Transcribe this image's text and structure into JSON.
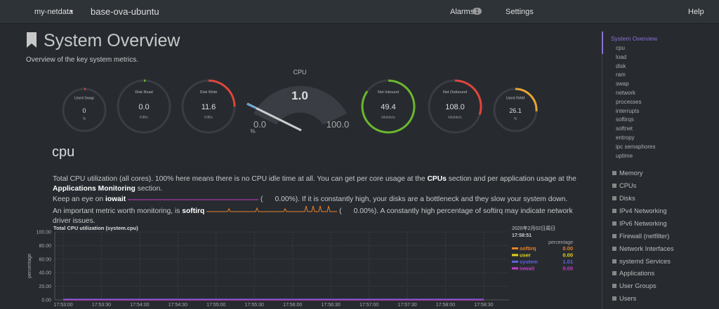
{
  "navbar": {
    "brand": "my-netdata",
    "host": "base-ova-ubuntu",
    "alarms": "Alarms",
    "alarms_count": "1",
    "settings": "Settings",
    "help": "Help"
  },
  "header": {
    "title": "System Overview",
    "subtitle": "Overview of the key system metrics."
  },
  "gauges": [
    {
      "label": "Used Swap",
      "value": "0",
      "units": "%"
    },
    {
      "label": "Disk Read",
      "value": "0.0",
      "units": "KiB/s"
    },
    {
      "label": "Disk Write",
      "value": "11.6",
      "units": "KiB/s"
    },
    {
      "label": "Net Inbound",
      "value": "49.4",
      "units": "kilobits/s"
    },
    {
      "label": "Net Outbound",
      "value": "108.0",
      "units": "kilobits/s"
    },
    {
      "label": "Used RAM",
      "value": "26.1",
      "units": "%"
    }
  ],
  "cpu_gauge": {
    "label": "CPU",
    "value": "1.0",
    "min": "0.0",
    "max": "100.0",
    "units": "%"
  },
  "section": {
    "title": "cpu",
    "text_1": "Total CPU utilization (all cores). 100% here means there is no CPU idle time at all. You can get per core usage at the ",
    "link_1": "CPUs",
    "text_2": " section and per application usage at the ",
    "link_2": "Applications Monitoring",
    "text_3": " section.",
    "iowait_pre": "Keep an eye on ",
    "iowait_key": "iowait",
    "iowait_open": "(",
    "iowait_value": "0.00%",
    "iowait_post": "). If it is constantly high, your disks are a bottleneck and they slow your system down.",
    "softirq_pre": "An important metric worth monitoring, is ",
    "softirq_key": "softirq",
    "softirq_open": "(",
    "softirq_value": "0.00%",
    "softirq_post": "). A constantly high percentage of softirq may indicate network driver issues."
  },
  "chart_data": {
    "type": "line",
    "title": "Total CPU utilization (system.cpu)",
    "y_label": "percentage",
    "grid": true,
    "ylim": [
      0,
      100
    ],
    "yticks": [
      {
        "value": 100,
        "label": "100.00"
      },
      {
        "value": 80,
        "label": "80.00"
      },
      {
        "value": 60,
        "label": "60.00"
      },
      {
        "value": 40,
        "label": "40.00"
      },
      {
        "value": 20,
        "label": "20.00"
      },
      {
        "value": 0,
        "label": "0.00"
      }
    ],
    "x": [
      "17:53:00",
      "17:53:30",
      "17:54:00",
      "17:54:30",
      "17:55:00",
      "17:55:30",
      "17:56:00",
      "17:56:30",
      "17:57:00",
      "17:57:30",
      "17:58:00",
      "17:58:30"
    ],
    "legend": {
      "date": "2020年2月02日周日",
      "time": "17:58:51",
      "units": "percentage"
    },
    "series": [
      {
        "name": "softirq",
        "color": "#e5822a",
        "latest": "0.00",
        "values": [
          0,
          0,
          0,
          0,
          0,
          0,
          0,
          0,
          0,
          0,
          0,
          0
        ]
      },
      {
        "name": "user",
        "color": "#e5d41d",
        "latest": "0.00",
        "values": [
          0.5,
          0.4,
          0.5,
          0.4,
          0.5,
          0.5,
          0.4,
          0.5,
          0.4,
          0.5,
          0.4,
          0.5
        ]
      },
      {
        "name": "system",
        "color": "#5f63e0",
        "latest": "1.01",
        "values": [
          1,
          1,
          1,
          1,
          1,
          1,
          1,
          1,
          1,
          1,
          1,
          1
        ]
      },
      {
        "name": "iowait",
        "color": "#c43ec9",
        "latest": "0.00",
        "values": [
          0,
          0,
          0,
          0,
          0,
          0,
          0,
          0,
          0,
          0,
          0,
          0
        ]
      }
    ]
  },
  "sidebar": {
    "active": "System Overview",
    "subitems": [
      "cpu",
      "load",
      "disk",
      "ram",
      "swap",
      "network",
      "processes",
      "interrupts",
      "softirqs",
      "softnet",
      "entropy",
      "ipc semaphores",
      "uptime"
    ],
    "sections": [
      "Memory",
      "CPUs",
      "Disks",
      "IPv4 Networking",
      "IPv6 Networking",
      "Firewall (netfilter)",
      "Network Interfaces",
      "systemd Services",
      "Applications",
      "User Groups",
      "Users"
    ]
  }
}
